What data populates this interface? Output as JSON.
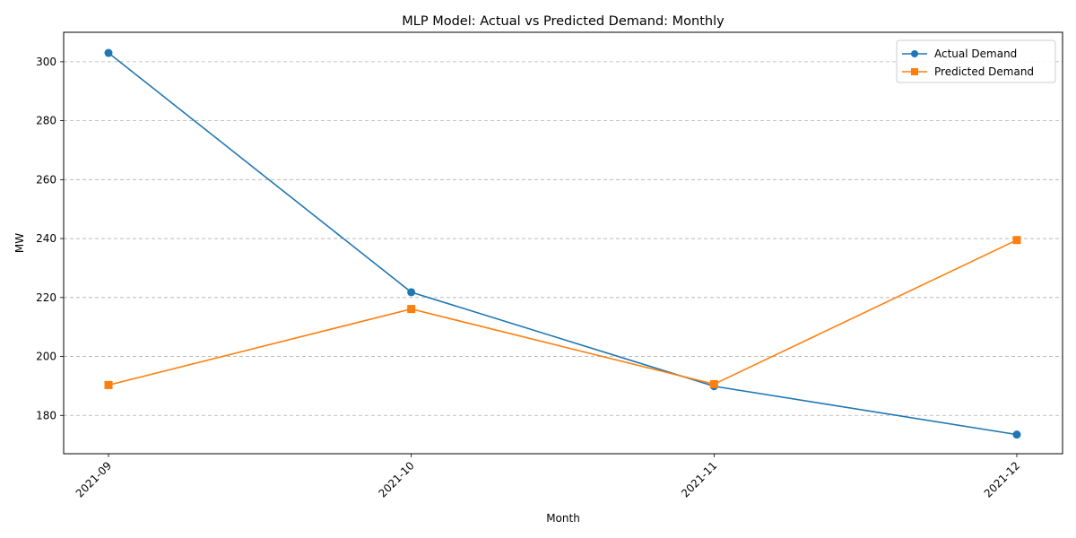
{
  "chart_data": {
    "type": "line",
    "title": "MLP Model: Actual vs Predicted Demand: Monthly",
    "xlabel": "Month",
    "ylabel": "MW",
    "categories": [
      "2021-09",
      "2021-10",
      "2021-11",
      "2021-12"
    ],
    "series": [
      {
        "name": "Actual Demand",
        "values": [
          303.0,
          221.8,
          189.9,
          173.5
        ],
        "color": "#1f77b4",
        "marker": "circle"
      },
      {
        "name": "Predicted Demand",
        "values": [
          190.3,
          216.1,
          190.6,
          239.5
        ],
        "color": "#ff7f0e",
        "marker": "square"
      }
    ],
    "ylim": [
      167,
      310
    ],
    "yticks": [
      180,
      200,
      220,
      240,
      260,
      280,
      300
    ],
    "grid": "y-dashed",
    "legend": "top-right"
  }
}
